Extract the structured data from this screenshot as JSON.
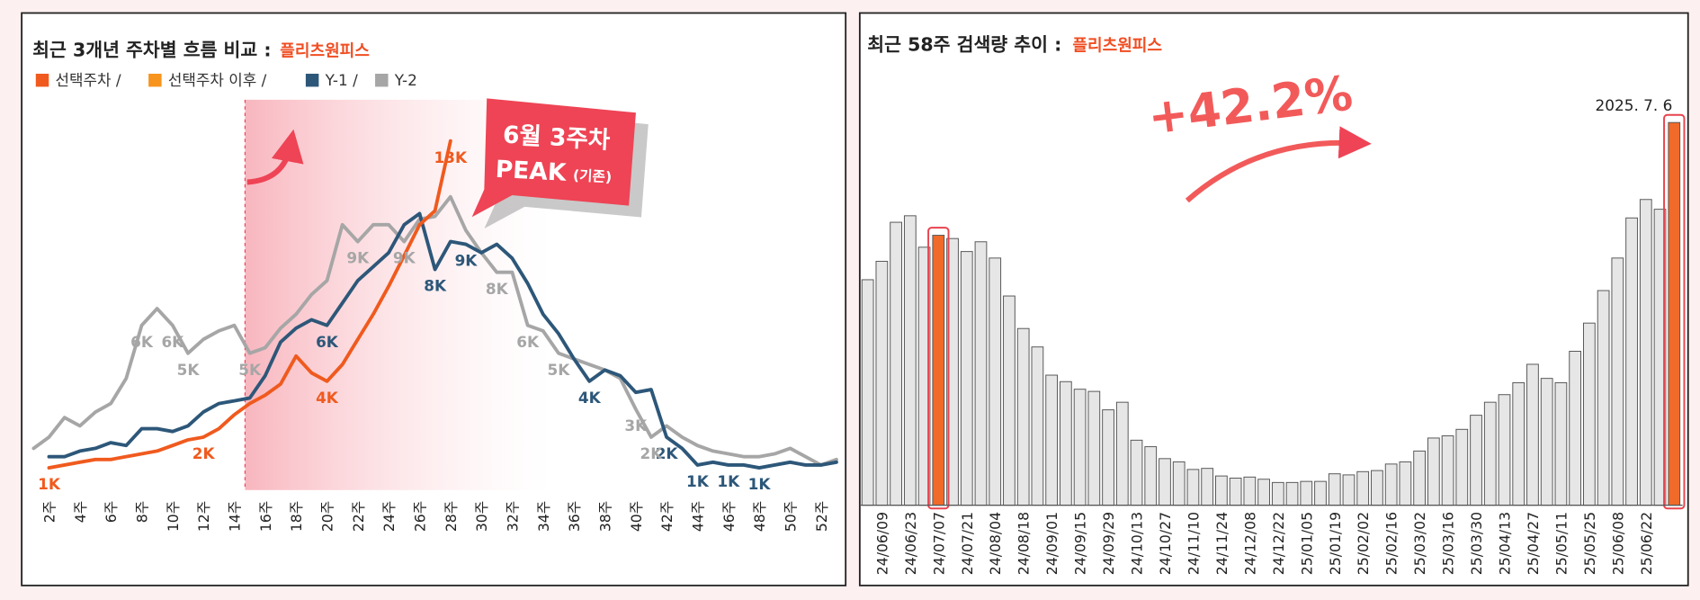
{
  "chart_data": [
    {
      "type": "line",
      "title": "최근 3개년 주차별 흐름 비교 :",
      "title_highlight": "플리츠원피스",
      "annotations": [
        "6월 3주차",
        "PEAK",
        "(기존)"
      ],
      "categories": [
        null,
        "2주",
        null,
        "4주",
        null,
        "6주",
        null,
        "8주",
        null,
        "10주",
        null,
        "12주",
        null,
        "14주",
        null,
        "16주",
        null,
        "18주",
        null,
        "20주",
        null,
        "22주",
        null,
        "24주",
        null,
        "26주",
        null,
        "28주",
        null,
        "30주",
        null,
        "32주",
        null,
        "34주",
        null,
        "36주",
        null,
        "38주",
        null,
        "40주",
        null,
        "42주",
        null,
        "44주",
        null,
        "46주",
        null,
        "48주",
        null,
        "50주",
        null,
        "52주",
        null
      ],
      "series": [
        {
          "name": "선택주차 /",
          "color": "#f05a1e",
          "values": [
            null,
            1.3,
            1.4,
            1.5,
            1.6,
            1.6,
            1.7,
            1.8,
            1.9,
            2.1,
            2.3,
            2.4,
            2.7,
            3.2,
            3.6,
            3.9,
            4.3,
            5.3,
            4.7,
            4.4,
            5.0,
            5.9,
            6.8,
            7.8,
            8.9,
            10.0,
            10.5,
            13.0,
            null,
            null,
            null,
            null,
            null,
            null,
            null,
            null,
            null,
            null,
            null,
            null,
            null,
            null,
            null,
            null,
            null,
            null,
            null,
            null,
            null,
            null,
            null,
            null,
            null
          ],
          "value_labels": [
            null,
            "1K",
            null,
            null,
            null,
            null,
            null,
            null,
            null,
            null,
            null,
            "2K",
            null,
            null,
            null,
            null,
            null,
            null,
            null,
            "4K",
            null,
            null,
            null,
            null,
            null,
            null,
            null,
            "13K",
            null,
            null,
            null,
            null,
            null,
            null,
            null,
            null,
            null,
            null,
            null,
            null,
            null,
            null,
            null,
            null,
            null,
            null,
            null,
            null,
            null,
            null,
            null,
            null,
            null
          ]
        },
        {
          "name": "선택주차 이후 /",
          "color": "#f7941d",
          "values": [
            null,
            null,
            null,
            null,
            null,
            null,
            null,
            null,
            null,
            null,
            null,
            null,
            null,
            null,
            null,
            null,
            null,
            null,
            null,
            null,
            null,
            null,
            null,
            null,
            null,
            null,
            null,
            null,
            null,
            null,
            null,
            null,
            null,
            null,
            null,
            null,
            null,
            null,
            null,
            null,
            null,
            null,
            null,
            null,
            null,
            null,
            null,
            null,
            null,
            null,
            null,
            null,
            null
          ]
        },
        {
          "name": "Y-1 /",
          "color": "#2d5779",
          "values": [
            null,
            1.7,
            1.7,
            1.9,
            2.0,
            2.2,
            2.1,
            2.7,
            2.7,
            2.6,
            2.8,
            3.3,
            3.6,
            3.7,
            3.8,
            4.6,
            5.8,
            6.3,
            6.6,
            6.4,
            7.2,
            8.0,
            8.5,
            9.0,
            10.0,
            10.4,
            8.4,
            9.4,
            9.3,
            9.0,
            9.3,
            8.8,
            7.9,
            6.8,
            6.1,
            5.2,
            4.4,
            4.8,
            4.6,
            4.0,
            4.1,
            2.4,
            2.0,
            1.4,
            1.5,
            1.4,
            1.4,
            1.3,
            1.4,
            1.5,
            1.4,
            1.4,
            1.5
          ],
          "value_labels": [
            null,
            null,
            null,
            null,
            null,
            null,
            null,
            null,
            null,
            null,
            null,
            null,
            null,
            null,
            null,
            null,
            null,
            null,
            null,
            "6K",
            null,
            null,
            null,
            null,
            null,
            null,
            "8K",
            null,
            "9K",
            null,
            null,
            null,
            null,
            null,
            null,
            null,
            "4K",
            null,
            null,
            null,
            null,
            "2K",
            null,
            "1K",
            null,
            "1K",
            null,
            "1K",
            null,
            null,
            null,
            null,
            null
          ]
        },
        {
          "name": "Y-2",
          "color": "#a6a6a6",
          "values": [
            2.0,
            2.4,
            3.1,
            2.8,
            3.3,
            3.6,
            4.5,
            6.4,
            7.0,
            6.4,
            5.4,
            5.9,
            6.2,
            6.4,
            5.4,
            5.6,
            6.3,
            6.8,
            7.5,
            8.0,
            10.0,
            9.4,
            10.0,
            10.0,
            9.4,
            10.2,
            10.3,
            11.0,
            9.8,
            9.0,
            8.3,
            8.3,
            6.4,
            6.2,
            5.4,
            5.2,
            5.0,
            4.8,
            4.5,
            3.4,
            2.4,
            2.8,
            2.4,
            2.1,
            1.9,
            1.8,
            1.7,
            1.7,
            1.8,
            2.0,
            1.7,
            1.4,
            1.6
          ],
          "value_labels": [
            null,
            null,
            null,
            null,
            null,
            null,
            null,
            "6K",
            null,
            "6K",
            "5K",
            null,
            null,
            null,
            "5K",
            null,
            null,
            null,
            null,
            null,
            null,
            "9K",
            null,
            null,
            "9K",
            null,
            null,
            null,
            null,
            null,
            "8K",
            null,
            "6K",
            null,
            "5K",
            null,
            null,
            null,
            null,
            "3K",
            "2K",
            null,
            null,
            null,
            null,
            null,
            null,
            null,
            null,
            null,
            null,
            null,
            null
          ]
        }
      ]
    },
    {
      "type": "bar",
      "title": "최근 58주 검색량 추이 :",
      "title_highlight": "플리츠원피스",
      "annotations": [
        "+42.2%",
        "2025. 7. 6"
      ],
      "categories": [
        null,
        "24/06/09",
        null,
        "24/06/23",
        null,
        "24/07/07",
        null,
        "24/07/21",
        null,
        "24/08/04",
        null,
        "24/08/18",
        null,
        "24/09/01",
        null,
        "24/09/15",
        null,
        "24/09/29",
        null,
        "24/10/13",
        null,
        "24/10/27",
        null,
        "24/11/10",
        null,
        "24/11/24",
        null,
        "24/12/08",
        null,
        "24/12/22",
        null,
        "25/01/05",
        null,
        "25/01/19",
        null,
        "25/02/02",
        null,
        "25/02/16",
        null,
        "25/03/02",
        null,
        "25/03/16",
        null,
        "25/03/30",
        null,
        "25/04/13",
        null,
        "25/04/27",
        null,
        "25/05/11",
        null,
        "25/05/25",
        null,
        "25/06/08",
        null,
        "25/06/22",
        null,
        null
      ],
      "values": [
        208,
        225,
        261,
        267,
        238,
        249,
        246,
        234,
        243,
        228,
        193,
        163,
        146,
        120,
        114,
        107,
        105,
        88,
        95,
        60,
        54,
        43,
        40,
        33,
        34,
        27,
        25,
        26,
        24,
        21,
        21,
        22,
        22,
        29,
        28,
        31,
        32,
        38,
        40,
        50,
        62,
        64,
        70,
        83,
        95,
        102,
        113,
        130,
        117,
        113,
        142,
        168,
        198,
        228,
        265,
        282,
        273,
        353
      ],
      "color": "#e6e6e6",
      "highlight": [
        5,
        57
      ],
      "highlight_color": "#f06a2a"
    }
  ]
}
